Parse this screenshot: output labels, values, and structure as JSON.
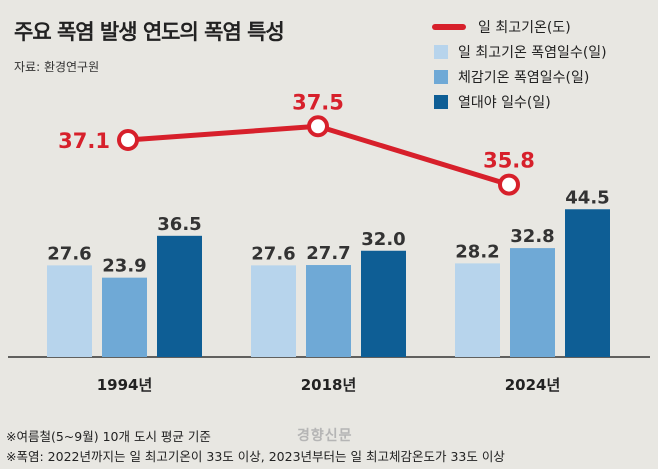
{
  "header": {
    "title": "주요 폭염 발생 연도의 폭염 특성",
    "source": "자료: 환경연구원"
  },
  "legend": [
    {
      "label": "일 최고기온(도)",
      "color": "#d7202b",
      "kind": "line"
    },
    {
      "label": "일 최고기온 폭염일수(일)",
      "color": "#b7d4ec",
      "kind": "box"
    },
    {
      "label": "체감기온 폭염일수(일)",
      "color": "#6fa9d6",
      "kind": "box"
    },
    {
      "label": "열대야 일수(일)",
      "color": "#0e5e95",
      "kind": "box"
    }
  ],
  "notes": [
    "※여름철(5~9월) 10개 도시 평균 기준",
    "※폭염: 2022년까지는 일 최고기온이 33도 이상, 2023년부터는 일 최고체감온도가 33도 이상"
  ],
  "watermark": "경향신문",
  "chart_data": {
    "type": "bar",
    "categories": [
      "1994년",
      "2018년",
      "2024년"
    ],
    "series": [
      {
        "name": "일 최고기온 폭염일수(일)",
        "values": [
          27.6,
          27.6,
          28.2
        ],
        "color": "#b7d4ec"
      },
      {
        "name": "체감기온 폭염일수(일)",
        "values": [
          23.9,
          27.7,
          32.8
        ],
        "color": "#6fa9d6"
      },
      {
        "name": "열대야 일수(일)",
        "values": [
          36.5,
          32.0,
          44.5
        ],
        "color": "#0e5e95"
      }
    ],
    "bar_labels": [
      [
        "27.6",
        "27.6",
        "28.2"
      ],
      [
        "23.9",
        "27.7",
        "32.8"
      ],
      [
        "36.5",
        "32.0",
        "44.5"
      ]
    ],
    "line_series": {
      "name": "일 최고기온(도)",
      "values": [
        37.1,
        37.5,
        35.8
      ],
      "labels": [
        "37.1",
        "37.5",
        "35.8"
      ],
      "color": "#d7202b"
    },
    "ylim": [
      0,
      50
    ]
  }
}
